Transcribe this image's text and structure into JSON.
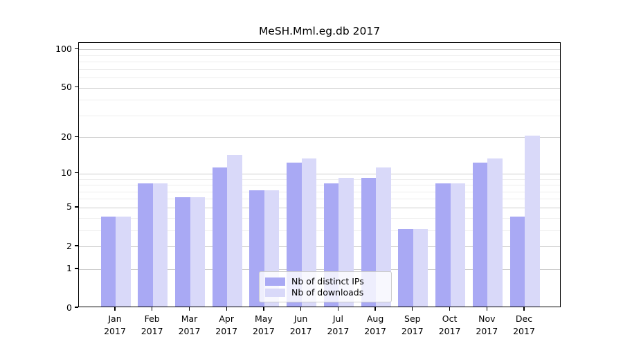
{
  "chart_data": {
    "type": "bar",
    "title": "MeSH.Mml.eg.db 2017",
    "categories": [
      "Jan",
      "Feb",
      "Mar",
      "Apr",
      "May",
      "Jun",
      "Jul",
      "Aug",
      "Sep",
      "Oct",
      "Nov",
      "Dec"
    ],
    "x_tick_second_line": "2017",
    "series": [
      {
        "name": "Nb of distinct IPs",
        "color": "#a9a9f4",
        "values": [
          4,
          8,
          6,
          11,
          7,
          12,
          8,
          9,
          3,
          8,
          12,
          4
        ]
      },
      {
        "name": "Nb of downloads",
        "color": "#d9d9f9",
        "values": [
          4,
          8,
          6,
          14,
          7,
          13,
          9,
          11,
          3,
          8,
          13,
          20
        ]
      }
    ],
    "y_axis": {
      "scale": "log1p",
      "tick_labels": [
        0,
        1,
        2,
        5,
        10,
        20,
        50,
        100
      ],
      "minor_gridlines": [
        3,
        4,
        6,
        7,
        8,
        9,
        30,
        40,
        60,
        70,
        80,
        90
      ],
      "ylim": [
        0,
        113
      ]
    },
    "legend": {
      "position": "lower center",
      "entries": [
        "Nb of distinct IPs",
        "Nb of downloads"
      ]
    },
    "grid": true
  },
  "colors": {
    "major_gridline": "#cccccc",
    "minor_gridline": "#ededed",
    "spine": "#000000",
    "background": "#ffffff"
  }
}
